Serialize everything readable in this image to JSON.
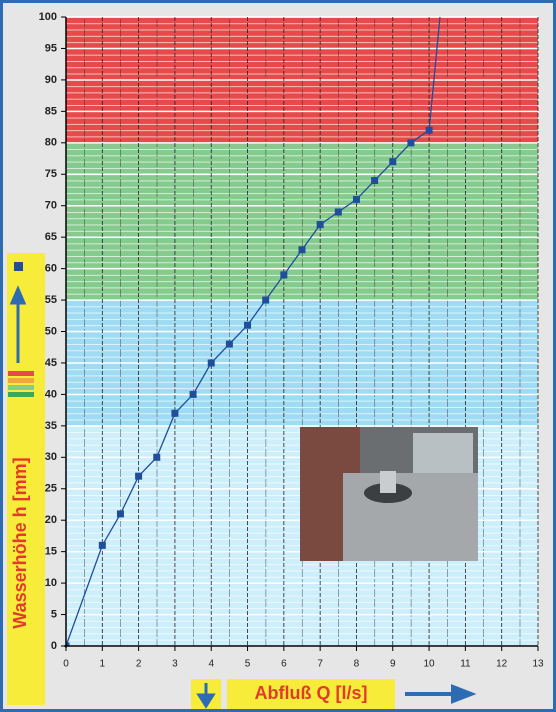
{
  "chart_data": {
    "type": "line",
    "y_label": "Wasserhöhe h [mm]",
    "x_label": "Abfluß Q [l/s]",
    "xlim": [
      0,
      13
    ],
    "xticks": [
      0,
      1,
      2,
      3,
      4,
      5,
      6,
      7,
      8,
      9,
      10,
      11,
      12,
      13
    ],
    "ylim": [
      0,
      100
    ],
    "yticks": [
      0,
      5,
      10,
      15,
      20,
      25,
      30,
      35,
      40,
      45,
      50,
      55,
      60,
      65,
      70,
      75,
      80,
      85,
      90,
      95,
      100
    ],
    "grid": true,
    "bands": [
      {
        "from": 0,
        "to": 35,
        "color": "#cdeefb"
      },
      {
        "from": 35,
        "to": 55,
        "color": "#9fdcf3"
      },
      {
        "from": 55,
        "to": 80,
        "color": "#86cb8e"
      },
      {
        "from": 80,
        "to": 100,
        "color": "#e64a4a"
      }
    ],
    "series": [
      {
        "color": "#1f4e9c",
        "marker": "square",
        "x": [
          0,
          1,
          1.5,
          2,
          2.5,
          3,
          3.5,
          4,
          4.5,
          5,
          5.5,
          6,
          6.5,
          7,
          7.5,
          8,
          8.5,
          9,
          9.5,
          10,
          10.35
        ],
        "values": [
          0,
          16,
          21,
          27,
          30,
          37,
          40,
          45,
          48,
          51,
          55,
          59,
          63,
          67,
          69,
          71,
          74,
          77,
          80,
          82,
          103
        ]
      }
    ]
  }
}
